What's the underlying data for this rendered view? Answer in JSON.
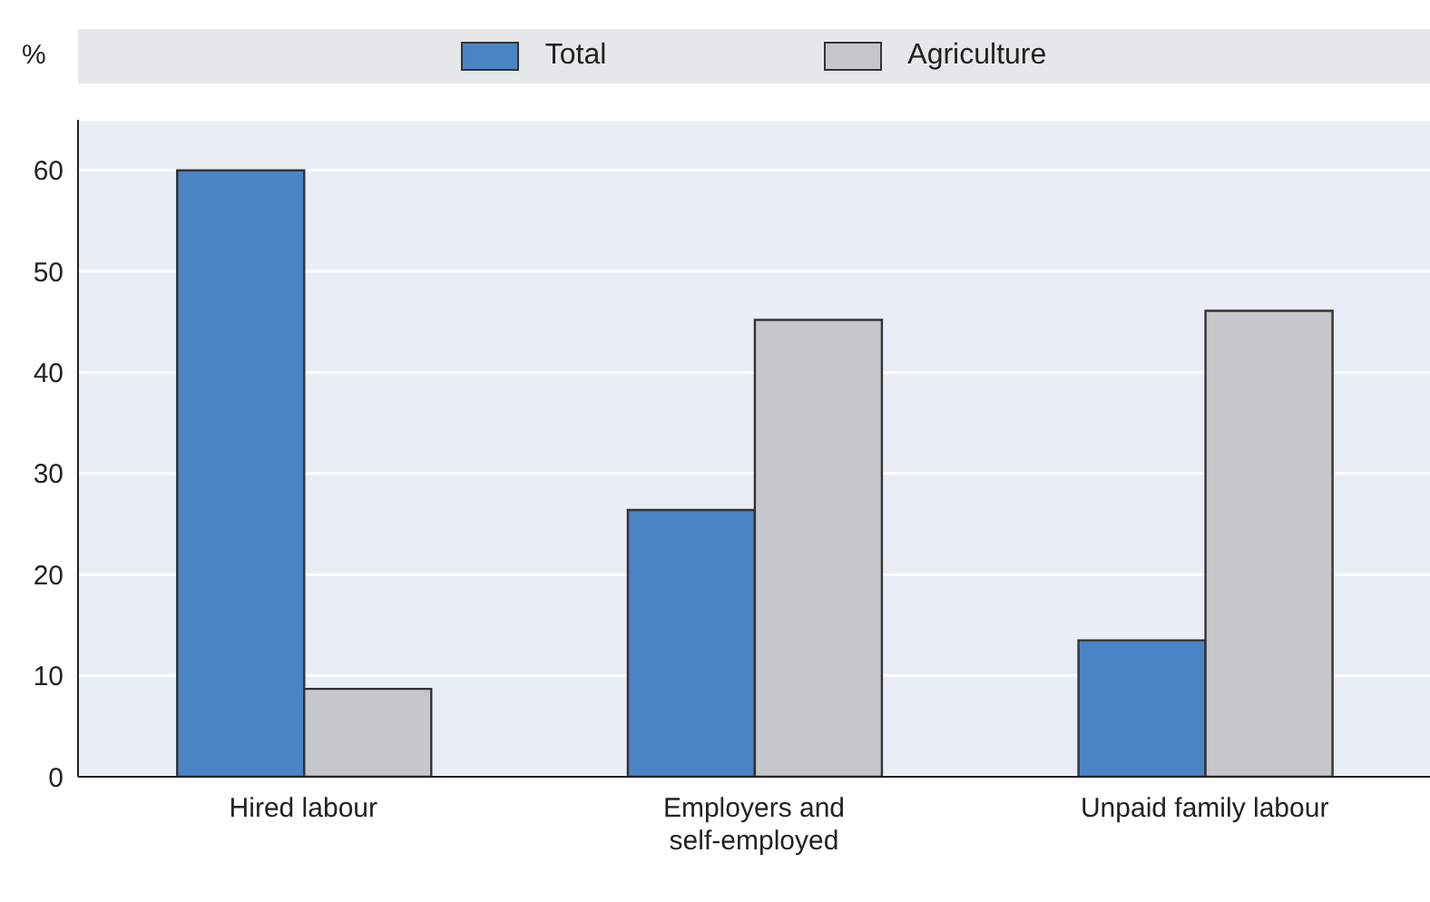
{
  "chart_data": {
    "type": "bar",
    "ylabel": "%",
    "categories": [
      "Hired labour",
      "Employers and self-employed",
      "Unpaid family labour"
    ],
    "series": [
      {
        "name": "Total",
        "color": "#4a84c4",
        "values": [
          60,
          26.4,
          13.5
        ]
      },
      {
        "name": "Agriculture",
        "color": "#c6c7ca",
        "values": [
          8.7,
          45.2,
          46.1
        ]
      }
    ],
    "ylim": [
      0,
      65
    ],
    "yticks": [
      0,
      10,
      20,
      30,
      40,
      50,
      60
    ],
    "grid": "y",
    "legend": "top"
  }
}
